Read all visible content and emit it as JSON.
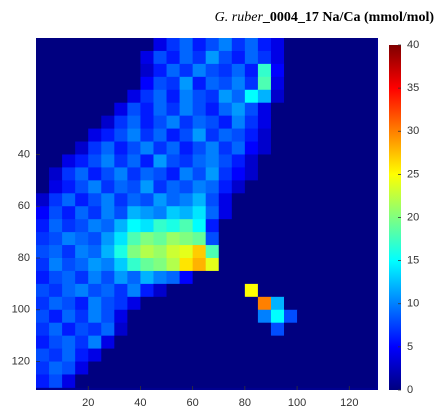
{
  "chart_data": {
    "type": "heatmap",
    "title_italic": "G. ruber",
    "title": "_0004_17 Na/Ca (mmol/mol)",
    "colormap": "jet",
    "clim": [
      0,
      40
    ],
    "cticks": [
      0,
      5,
      10,
      15,
      20,
      25,
      30,
      35,
      40
    ],
    "xlim": [
      0,
      131
    ],
    "ylim": [
      -5,
      131
    ],
    "y_reversed": true,
    "xticks": [
      20,
      40,
      60,
      80,
      100,
      120
    ],
    "yticks": [
      40,
      60,
      80,
      100,
      120
    ],
    "x": [
      2.5,
      7.5,
      12.5,
      17.5,
      22.5,
      27.5,
      32.5,
      37.5,
      42.5,
      47.5,
      52.5,
      57.5,
      62.5,
      67.5,
      72.5,
      77.5,
      82.5,
      87.5,
      92.5,
      97.5,
      102.5,
      107.5,
      112.5,
      117.5,
      122.5,
      127.5
    ],
    "y": [
      -2.5,
      2.5,
      7.5,
      12.5,
      17.5,
      22.5,
      27.5,
      32.5,
      37.5,
      42.5,
      47.5,
      52.5,
      57.5,
      62.5,
      67.5,
      72.5,
      77.5,
      82.5,
      87.5,
      92.5,
      97.5,
      102.5,
      107.5,
      112.5,
      117.5,
      122.5,
      127.5
    ],
    "z": [
      [
        0,
        0,
        0,
        0,
        0,
        0,
        0,
        0,
        0,
        4,
        7,
        9,
        6,
        8,
        10,
        7,
        9,
        6,
        4,
        0,
        0,
        0,
        0,
        0,
        0,
        0
      ],
      [
        0,
        0,
        0,
        0,
        0,
        0,
        0,
        0,
        4,
        8,
        6,
        9,
        7,
        11,
        8,
        6,
        9,
        7,
        4,
        0,
        0,
        0,
        0,
        0,
        0,
        0
      ],
      [
        0,
        0,
        0,
        0,
        0,
        0,
        0,
        0,
        3,
        6,
        9,
        7,
        10,
        8,
        7,
        9,
        6,
        17,
        5,
        0,
        0,
        0,
        0,
        0,
        0,
        0
      ],
      [
        0,
        0,
        0,
        0,
        0,
        0,
        0,
        0,
        5,
        8,
        7,
        11,
        6,
        9,
        8,
        10,
        7,
        18,
        4,
        0,
        0,
        0,
        0,
        0,
        0,
        0
      ],
      [
        0,
        0,
        0,
        0,
        0,
        0,
        0,
        4,
        7,
        9,
        6,
        10,
        8,
        7,
        11,
        9,
        15,
        12,
        3,
        0,
        0,
        0,
        0,
        0,
        0,
        0
      ],
      [
        0,
        0,
        0,
        0,
        0,
        0,
        4,
        8,
        6,
        9,
        7,
        10,
        8,
        6,
        9,
        11,
        8,
        4,
        0,
        0,
        0,
        0,
        0,
        0,
        0,
        0
      ],
      [
        0,
        0,
        0,
        0,
        0,
        3,
        7,
        9,
        6,
        8,
        10,
        7,
        9,
        8,
        6,
        10,
        7,
        4,
        0,
        0,
        0,
        0,
        0,
        0,
        0,
        0
      ],
      [
        0,
        0,
        0,
        0,
        4,
        6,
        8,
        10,
        7,
        9,
        6,
        8,
        11,
        7,
        9,
        8,
        6,
        3,
        0,
        0,
        0,
        0,
        0,
        0,
        0,
        0
      ],
      [
        0,
        0,
        0,
        3,
        7,
        9,
        6,
        8,
        10,
        7,
        9,
        6,
        8,
        10,
        7,
        9,
        5,
        3,
        0,
        0,
        0,
        0,
        0,
        0,
        0,
        0
      ],
      [
        0,
        0,
        4,
        6,
        8,
        10,
        7,
        9,
        6,
        11,
        8,
        7,
        9,
        10,
        8,
        6,
        3,
        0,
        0,
        0,
        0,
        0,
        0,
        0,
        0,
        0
      ],
      [
        0,
        3,
        7,
        9,
        6,
        8,
        10,
        7,
        9,
        8,
        6,
        10,
        8,
        11,
        7,
        5,
        3,
        0,
        0,
        0,
        0,
        0,
        0,
        0,
        0,
        0
      ],
      [
        0,
        4,
        6,
        8,
        10,
        7,
        9,
        8,
        11,
        7,
        9,
        8,
        10,
        9,
        6,
        3,
        0,
        0,
        0,
        0,
        0,
        0,
        0,
        0,
        0,
        0
      ],
      [
        3,
        7,
        9,
        6,
        8,
        10,
        7,
        9,
        8,
        11,
        9,
        10,
        12,
        8,
        4,
        0,
        0,
        0,
        0,
        0,
        0,
        0,
        0,
        0,
        0,
        0
      ],
      [
        5,
        8,
        6,
        9,
        7,
        10,
        8,
        12,
        11,
        10,
        13,
        12,
        14,
        9,
        4,
        0,
        0,
        0,
        0,
        0,
        0,
        0,
        0,
        0,
        0,
        0
      ],
      [
        6,
        9,
        7,
        8,
        10,
        9,
        12,
        15,
        14,
        17,
        16,
        18,
        15,
        6,
        0,
        0,
        0,
        0,
        0,
        0,
        0,
        0,
        0,
        0,
        0,
        0
      ],
      [
        7,
        8,
        10,
        9,
        8,
        11,
        14,
        18,
        20,
        19,
        21,
        20,
        19,
        8,
        0,
        0,
        0,
        0,
        0,
        0,
        0,
        0,
        0,
        0,
        0,
        0
      ],
      [
        8,
        9,
        7,
        10,
        9,
        12,
        16,
        20,
        22,
        21,
        23,
        24,
        27,
        18,
        0,
        0,
        0,
        0,
        0,
        0,
        0,
        0,
        0,
        0,
        0,
        0
      ],
      [
        7,
        10,
        8,
        9,
        11,
        10,
        13,
        17,
        19,
        20,
        22,
        26,
        28,
        24,
        0,
        0,
        0,
        0,
        0,
        0,
        0,
        0,
        0,
        0,
        0,
        0
      ],
      [
        6,
        8,
        9,
        7,
        10,
        8,
        11,
        9,
        12,
        10,
        9,
        5,
        0,
        0,
        0,
        0,
        0,
        0,
        0,
        0,
        0,
        0,
        0,
        0,
        0,
        0
      ],
      [
        8,
        7,
        9,
        10,
        8,
        9,
        7,
        10,
        6,
        3,
        0,
        0,
        0,
        0,
        0,
        0,
        25,
        0,
        0,
        0,
        0,
        0,
        0,
        0,
        0,
        0
      ],
      [
        7,
        9,
        8,
        6,
        10,
        8,
        7,
        4,
        0,
        0,
        0,
        0,
        0,
        0,
        0,
        0,
        0,
        30,
        12,
        0,
        0,
        0,
        0,
        0,
        0,
        0
      ],
      [
        8,
        6,
        9,
        7,
        10,
        8,
        4,
        0,
        0,
        0,
        0,
        0,
        0,
        0,
        0,
        0,
        0,
        10,
        15,
        8,
        0,
        0,
        0,
        0,
        0,
        0
      ],
      [
        7,
        9,
        6,
        8,
        7,
        9,
        3,
        0,
        0,
        0,
        0,
        0,
        0,
        0,
        0,
        0,
        0,
        0,
        8,
        0,
        0,
        0,
        0,
        0,
        0,
        0
      ],
      [
        6,
        8,
        9,
        7,
        10,
        4,
        0,
        0,
        0,
        0,
        0,
        0,
        0,
        0,
        0,
        0,
        0,
        0,
        0,
        0,
        0,
        0,
        0,
        0,
        0,
        0
      ],
      [
        8,
        7,
        9,
        6,
        4,
        0,
        0,
        0,
        0,
        0,
        0,
        0,
        0,
        0,
        0,
        0,
        0,
        0,
        0,
        0,
        0,
        0,
        0,
        0,
        0,
        0
      ],
      [
        7,
        9,
        8,
        4,
        0,
        0,
        0,
        0,
        0,
        0,
        0,
        0,
        0,
        0,
        0,
        0,
        0,
        0,
        0,
        0,
        0,
        0,
        0,
        0,
        0,
        0
      ],
      [
        6,
        8,
        4,
        0,
        0,
        0,
        0,
        0,
        0,
        0,
        0,
        0,
        0,
        0,
        0,
        0,
        0,
        0,
        0,
        0,
        0,
        0,
        0,
        0,
        0,
        0
      ]
    ]
  }
}
